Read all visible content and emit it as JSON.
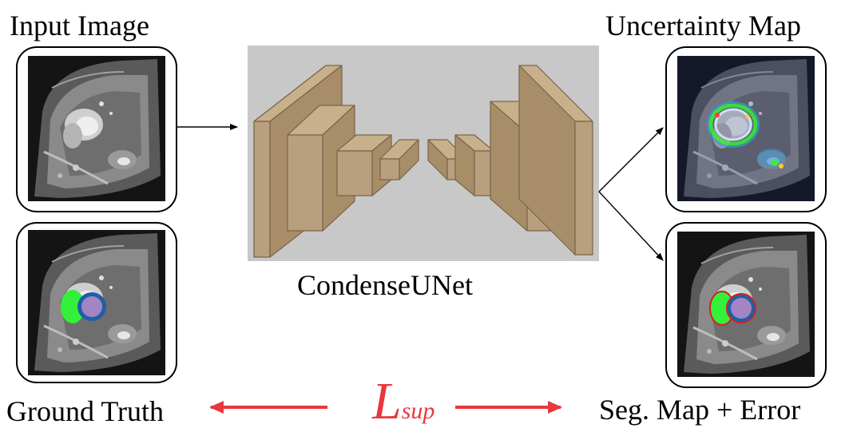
{
  "labels": {
    "input": "Input Image",
    "uncertainty": "Uncertainty Map",
    "network": "CondenseUNet",
    "ground_truth": "Ground Truth",
    "segmentation": "Seg. Map + Error"
  },
  "loss": {
    "symbol": "L",
    "subscript": "sup"
  },
  "colors": {
    "box_fill": "#b8a07e",
    "box_stroke": "#7a6447",
    "network_bg": "#c8c8c8",
    "arrow_red": "#e8383d",
    "seg_green": "#35f03a",
    "seg_blue": "#1f5fa8",
    "seg_purple": "#a385c4",
    "error_red": "#d02020"
  },
  "icons": {
    "input": "mri-cardiac-icon",
    "ground_truth": "mri-ground-truth-icon",
    "uncertainty": "mri-uncertainty-icon",
    "segmentation": "mri-segmentation-icon",
    "network": "unet-blocks-icon"
  }
}
